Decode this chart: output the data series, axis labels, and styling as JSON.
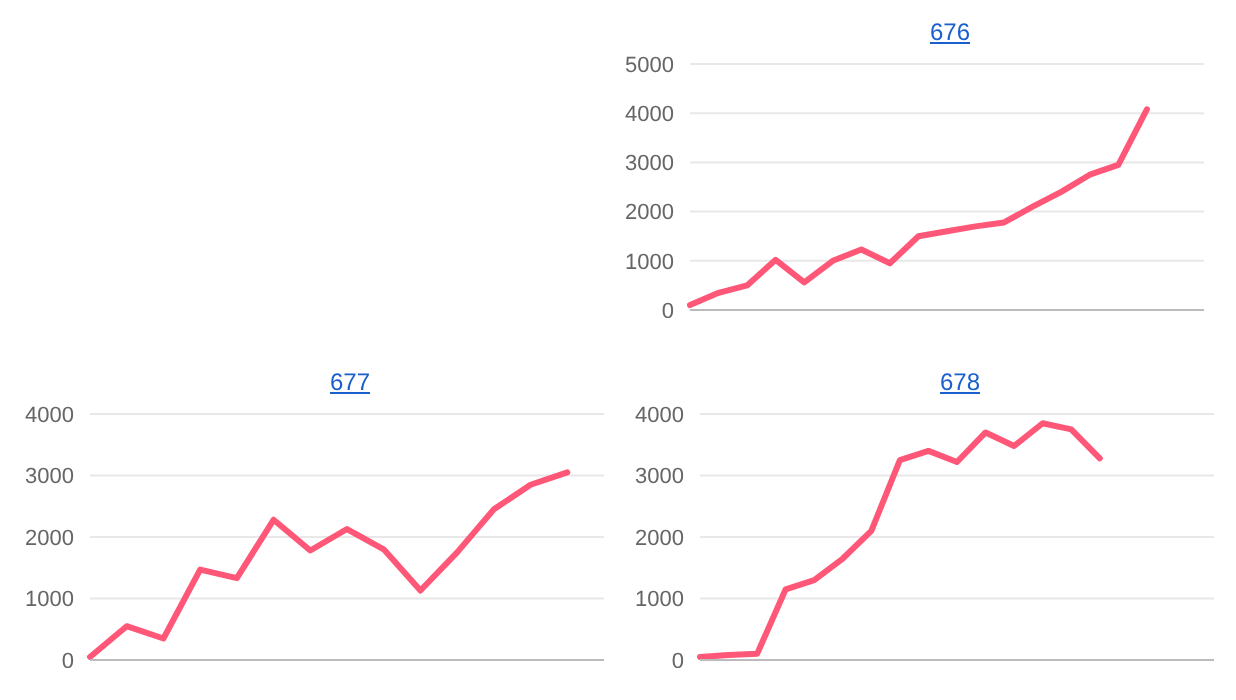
{
  "chart_data": [
    {
      "type": "line",
      "title": "676",
      "categories": [
        null,
        null,
        null,
        null,
        null,
        null,
        null,
        null,
        null,
        null,
        null,
        null,
        null,
        null,
        null,
        null,
        null,
        null,
        null
      ],
      "values": [
        100,
        350,
        500,
        1020,
        560,
        1000,
        1230,
        950,
        1500,
        1600,
        1700,
        1780,
        2100,
        2400,
        2750,
        2950,
        4080,
        null,
        null
      ],
      "color": "#ff5777",
      "ylim": [
        0,
        5000
      ],
      "yticks": [
        0,
        1000,
        2000,
        3000,
        4000,
        5000
      ],
      "grid": "y",
      "tick_labels": "y",
      "marker": "none"
    },
    {
      "type": "line",
      "title": "677",
      "categories": [
        null,
        null,
        null,
        null,
        null,
        null,
        null,
        null,
        null,
        null,
        null,
        null,
        null,
        null,
        null
      ],
      "values": [
        50,
        550,
        350,
        1470,
        1330,
        2280,
        1780,
        2130,
        1800,
        1130,
        1750,
        2450,
        2850,
        3050,
        null
      ],
      "color": "#ff5777",
      "ylim": [
        0,
        4000
      ],
      "yticks": [
        0,
        1000,
        2000,
        3000,
        4000
      ],
      "grid": "y",
      "tick_labels": "y",
      "marker": "none"
    },
    {
      "type": "line",
      "title": "678",
      "categories": [
        null,
        null,
        null,
        null,
        null,
        null,
        null,
        null,
        null,
        null,
        null,
        null,
        null,
        null,
        null,
        null,
        null,
        null,
        null
      ],
      "values": [
        50,
        80,
        100,
        1150,
        1300,
        1650,
        2100,
        3250,
        3400,
        3220,
        3700,
        3480,
        3850,
        3750,
        3280,
        null,
        null,
        null,
        null
      ],
      "color": "#ff5777",
      "ylim": [
        0,
        4000
      ],
      "yticks": [
        0,
        1000,
        2000,
        3000,
        4000
      ],
      "grid": "y",
      "tick_labels": "y",
      "marker": "none"
    }
  ]
}
